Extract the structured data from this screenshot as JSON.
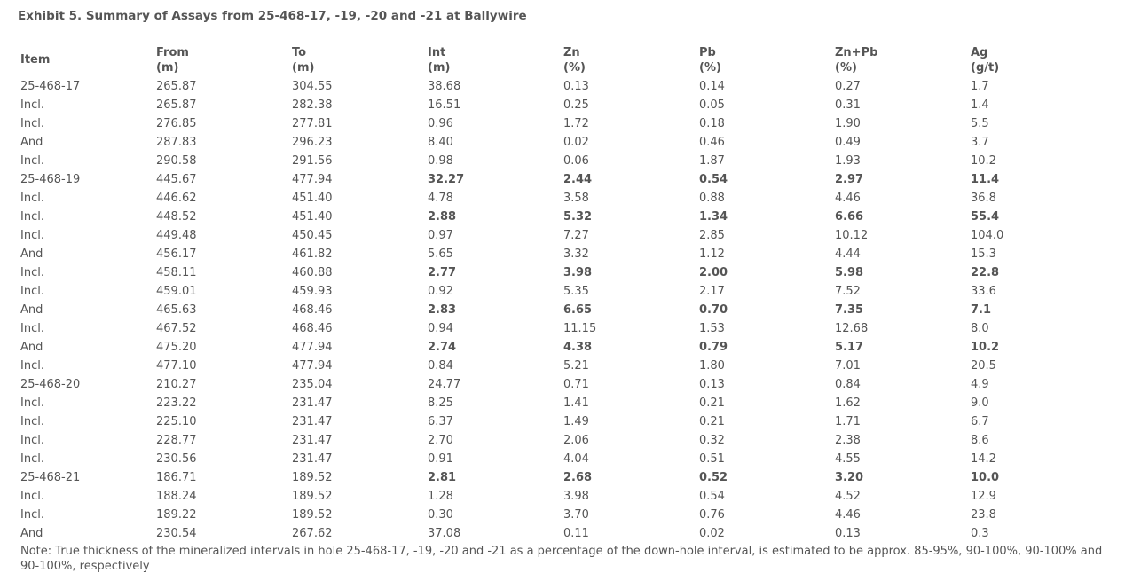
{
  "title": "Exhibit 5. Summary of Assays from 25-468-17, -19, -20 and -21 at Ballywire",
  "table": {
    "columns": [
      {
        "label": "Item"
      },
      {
        "label": "From",
        "unit": "(m)"
      },
      {
        "label": "To",
        "unit": "(m)"
      },
      {
        "label": "Int",
        "unit": "(m)"
      },
      {
        "label": "Zn",
        "unit": "(%)"
      },
      {
        "label": "Pb",
        "unit": "(%)"
      },
      {
        "label": "Zn+Pb",
        "unit": "(%)"
      },
      {
        "label": "Ag",
        "unit": "(g/t)"
      }
    ],
    "rows": [
      [
        "25-468-17",
        "265.87",
        "304.55",
        "38.68",
        "0.13",
        "0.14",
        "0.27",
        "1.7"
      ],
      [
        "Incl.",
        "265.87",
        "282.38",
        "16.51",
        "0.25",
        "0.05",
        "0.31",
        "1.4"
      ],
      [
        "Incl.",
        "276.85",
        "277.81",
        "0.96",
        "1.72",
        "0.18",
        "1.90",
        "5.5"
      ],
      [
        "And",
        "287.83",
        "296.23",
        "8.40",
        "0.02",
        "0.46",
        "0.49",
        "3.7"
      ],
      [
        "Incl.",
        "290.58",
        "291.56",
        "0.98",
        "0.06",
        "1.87",
        "1.93",
        "10.2"
      ],
      [
        "25-468-19",
        "445.67",
        "477.94",
        "32.27",
        "2.44",
        "0.54",
        "2.97",
        "11.4"
      ],
      [
        "Incl.",
        "446.62",
        "451.40",
        "4.78",
        "3.58",
        "0.88",
        "4.46",
        "36.8"
      ],
      [
        "Incl.",
        "448.52",
        "451.40",
        "2.88",
        "5.32",
        "1.34",
        "6.66",
        "55.4"
      ],
      [
        "Incl.",
        "449.48",
        "450.45",
        "0.97",
        "7.27",
        "2.85",
        "10.12",
        "104.0"
      ],
      [
        "And",
        "456.17",
        "461.82",
        "5.65",
        "3.32",
        "1.12",
        "4.44",
        "15.3"
      ],
      [
        "Incl.",
        "458.11",
        "460.88",
        "2.77",
        "3.98",
        "2.00",
        "5.98",
        "22.8"
      ],
      [
        "Incl.",
        "459.01",
        "459.93",
        "0.92",
        "5.35",
        "2.17",
        "7.52",
        "33.6"
      ],
      [
        "And",
        "465.63",
        "468.46",
        "2.83",
        "6.65",
        "0.70",
        "7.35",
        "7.1"
      ],
      [
        "Incl.",
        "467.52",
        "468.46",
        "0.94",
        "11.15",
        "1.53",
        "12.68",
        "8.0"
      ],
      [
        "And",
        "475.20",
        "477.94",
        "2.74",
        "4.38",
        "0.79",
        "5.17",
        "10.2"
      ],
      [
        "Incl.",
        "477.10",
        "477.94",
        "0.84",
        "5.21",
        "1.80",
        "7.01",
        "20.5"
      ],
      [
        "25-468-20",
        "210.27",
        "235.04",
        "24.77",
        "0.71",
        "0.13",
        "0.84",
        "4.9"
      ],
      [
        "Incl.",
        "223.22",
        "231.47",
        "8.25",
        "1.41",
        "0.21",
        "1.62",
        "9.0"
      ],
      [
        "Incl.",
        "225.10",
        "231.47",
        "6.37",
        "1.49",
        "0.21",
        "1.71",
        "6.7"
      ],
      [
        "Incl.",
        "228.77",
        "231.47",
        "2.70",
        "2.06",
        "0.32",
        "2.38",
        "8.6"
      ],
      [
        "Incl.",
        "230.56",
        "231.47",
        "0.91",
        "4.04",
        "0.51",
        "4.55",
        "14.2"
      ],
      [
        "25-468-21",
        "186.71",
        "189.52",
        "2.81",
        "2.68",
        "0.52",
        "3.20",
        "10.0"
      ],
      [
        "Incl.",
        "188.24",
        "189.52",
        "1.28",
        "3.98",
        "0.54",
        "4.52",
        "12.9"
      ],
      [
        "Incl.",
        "189.22",
        "189.52",
        "0.30",
        "3.70",
        "0.76",
        "4.46",
        "23.8"
      ],
      [
        "And",
        "230.54",
        "267.62",
        "37.08",
        "0.11",
        "0.02",
        "0.13",
        "0.3"
      ]
    ]
  },
  "note": "Note: True thickness of the mineralized intervals in hole 25-468-17, -19, -20 and -21 as a percentage of the down-hole interval, is estimated to be approx. 85-95%, 90-100%, 90-100% and 90-100%, respectively"
}
